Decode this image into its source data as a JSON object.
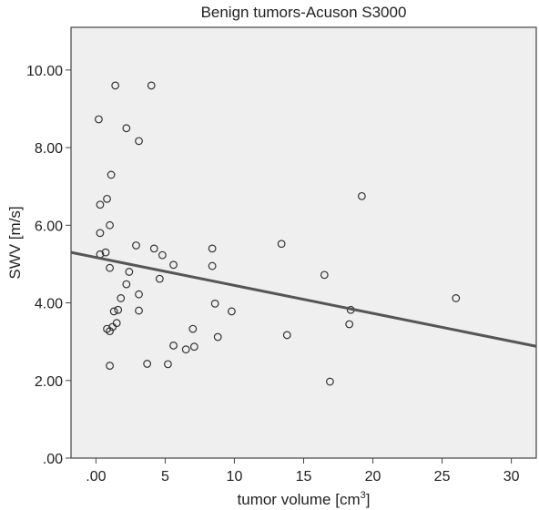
{
  "chart_data": {
    "type": "scatter",
    "title": "Benign tumors-Acuson S3000",
    "xlabel": "tumor volume [cm",
    "xlabel_sup": "3",
    "xlabel_end": "]",
    "ylabel": "SWV [m/s]",
    "xlim": [
      -1.8,
      31.8
    ],
    "ylim": [
      0,
      11.1
    ],
    "xticks": [
      0,
      5,
      10,
      15,
      20,
      25,
      30
    ],
    "xtick_labels": [
      ".00",
      "5",
      "10",
      "15",
      "20",
      "25",
      "30"
    ],
    "yticks": [
      0,
      2,
      4,
      6,
      8,
      10
    ],
    "ytick_labels": [
      ".00",
      "2.00",
      "4.00",
      "6.00",
      "8.00",
      "10.00"
    ],
    "grid": false,
    "legend": "none",
    "colors": {
      "plot_background": "#efefef",
      "marker": "#333333",
      "fit_line": "#555555",
      "axes": "#444444"
    },
    "series": [
      {
        "points": [
          [
            0.2,
            8.73
          ],
          [
            1.4,
            9.6
          ],
          [
            4.0,
            9.6
          ],
          [
            2.2,
            8.5
          ],
          [
            3.1,
            8.17
          ],
          [
            1.1,
            7.3
          ],
          [
            0.8,
            6.68
          ],
          [
            0.3,
            6.53
          ],
          [
            1.0,
            6.0
          ],
          [
            0.3,
            5.8
          ],
          [
            0.3,
            5.25
          ],
          [
            0.7,
            5.3
          ],
          [
            1.0,
            4.9
          ],
          [
            2.9,
            5.48
          ],
          [
            4.2,
            5.4
          ],
          [
            4.8,
            5.23
          ],
          [
            5.6,
            4.98
          ],
          [
            2.4,
            4.8
          ],
          [
            4.6,
            4.62
          ],
          [
            2.2,
            4.48
          ],
          [
            3.1,
            4.22
          ],
          [
            1.8,
            4.12
          ],
          [
            1.6,
            3.82
          ],
          [
            1.3,
            3.78
          ],
          [
            3.1,
            3.8
          ],
          [
            1.5,
            3.48
          ],
          [
            1.2,
            3.38
          ],
          [
            0.8,
            3.33
          ],
          [
            1.0,
            3.27
          ],
          [
            1.0,
            2.38
          ],
          [
            3.7,
            2.43
          ],
          [
            5.2,
            2.42
          ],
          [
            5.6,
            2.9
          ],
          [
            6.5,
            2.8
          ],
          [
            7.1,
            2.87
          ],
          [
            7.0,
            3.33
          ],
          [
            8.8,
            3.12
          ],
          [
            8.4,
            5.4
          ],
          [
            8.4,
            4.95
          ],
          [
            8.6,
            3.98
          ],
          [
            9.8,
            3.78
          ],
          [
            13.4,
            5.52
          ],
          [
            13.8,
            3.17
          ],
          [
            16.5,
            4.72
          ],
          [
            16.9,
            1.97
          ],
          [
            18.4,
            3.82
          ],
          [
            18.3,
            3.45
          ],
          [
            19.2,
            6.75
          ],
          [
            26.0,
            4.12
          ]
        ]
      }
    ],
    "fit_line": {
      "x": [
        -1.8,
        31.8
      ],
      "y": [
        5.3,
        2.88
      ]
    }
  }
}
